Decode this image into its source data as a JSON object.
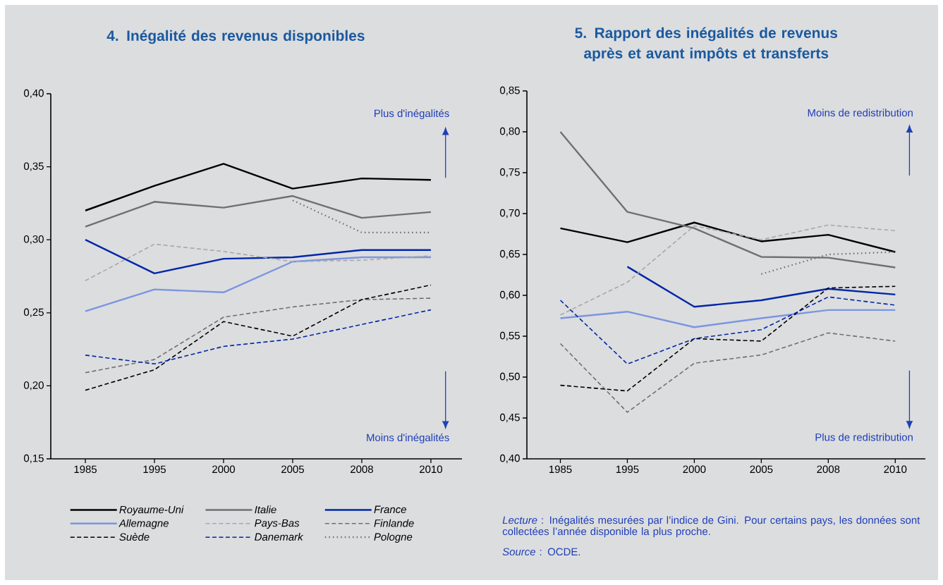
{
  "chart_data": [
    {
      "type": "line",
      "title": "4. Inégalité des revenus disponibles",
      "categories": [
        "1985",
        "1995",
        "2000",
        "2005",
        "2008",
        "2010"
      ],
      "ylim": [
        0.15,
        0.4
      ],
      "yticks": [
        {
          "value": 0.15,
          "label": "0,15"
        },
        {
          "value": 0.2,
          "label": "0,20"
        },
        {
          "value": 0.25,
          "label": "0,25"
        },
        {
          "value": 0.3,
          "label": "0,30"
        },
        {
          "value": 0.35,
          "label": "0,35"
        },
        {
          "value": 0.4,
          "label": "0,40"
        }
      ],
      "legend": "bottom",
      "annotations": [
        "Plus d'inégalités",
        "Moins d'inégalités"
      ],
      "series": [
        {
          "name": "Royaume-Uni",
          "color": "#000000",
          "line_style": "solid",
          "values": [
            0.32,
            0.337,
            0.352,
            0.335,
            0.342,
            0.341
          ]
        },
        {
          "name": "Italie",
          "color": "#707070",
          "line_style": "solid",
          "values": [
            0.309,
            0.326,
            0.322,
            0.33,
            0.315,
            0.319
          ]
        },
        {
          "name": "France",
          "color": "#0026a8",
          "line_style": "solid",
          "values": [
            0.3,
            0.277,
            0.287,
            0.288,
            0.293,
            0.293
          ]
        },
        {
          "name": "Allemagne",
          "color": "#7b95e0",
          "line_style": "solid",
          "values": [
            0.251,
            0.266,
            0.264,
            0.285,
            0.288,
            0.288
          ]
        },
        {
          "name": "Pays-Bas",
          "color": "#a8a8a8",
          "line_style": "dashed",
          "values": [
            0.272,
            0.297,
            0.292,
            0.285,
            0.286,
            0.289
          ]
        },
        {
          "name": "Finlande",
          "color": "#707070",
          "line_style": "dashed",
          "values": [
            0.209,
            0.218,
            0.247,
            0.254,
            0.259,
            0.26
          ]
        },
        {
          "name": "Suède",
          "color": "#000000",
          "line_style": "dashed",
          "values": [
            0.197,
            0.211,
            0.244,
            0.234,
            0.259,
            0.269
          ]
        },
        {
          "name": "Danemark",
          "color": "#0026a8",
          "line_style": "dashed",
          "values": [
            0.221,
            0.215,
            0.227,
            0.232,
            0.242,
            0.252
          ]
        },
        {
          "name": "Pologne",
          "color": "#707070",
          "line_style": "dotted",
          "values": [
            null,
            null,
            null,
            0.327,
            0.305,
            0.305
          ]
        }
      ]
    },
    {
      "type": "line",
      "title": "5. Rapport des inégalités de revenus après et avant impôts et transferts",
      "categories": [
        "1985",
        "1995",
        "2000",
        "2005",
        "2008",
        "2010"
      ],
      "ylim": [
        0.4,
        0.85
      ],
      "yticks": [
        {
          "value": 0.4,
          "label": "0,40"
        },
        {
          "value": 0.45,
          "label": "0,45"
        },
        {
          "value": 0.5,
          "label": "0,50"
        },
        {
          "value": 0.55,
          "label": "0,55"
        },
        {
          "value": 0.6,
          "label": "0,60"
        },
        {
          "value": 0.65,
          "label": "0,65"
        },
        {
          "value": 0.7,
          "label": "0,70"
        },
        {
          "value": 0.75,
          "label": "0,75"
        },
        {
          "value": 0.8,
          "label": "0,80"
        },
        {
          "value": 0.85,
          "label": "0,85"
        }
      ],
      "annotations": [
        "Moins de redistribution",
        "Plus de redistribution",
        "*Lecture* : Inégalités mesurées par l’indice de Gini. Pour certains pays, les données sont collectées l’année disponible la plus proche.",
        "*Source* : OCDE."
      ],
      "series": [
        {
          "color": "#000000",
          "line_style": "solid",
          "values": [
            0.682,
            0.665,
            0.689,
            0.666,
            0.674,
            0.653
          ]
        },
        {
          "color": "#707070",
          "line_style": "solid",
          "values": [
            0.8,
            0.702,
            0.682,
            0.647,
            0.646,
            0.634
          ]
        },
        {
          "color": "#0026a8",
          "line_style": "solid",
          "values": [
            null,
            0.635,
            0.586,
            0.594,
            0.608,
            0.601
          ]
        },
        {
          "color": "#7b95e0",
          "line_style": "solid",
          "values": [
            0.572,
            0.58,
            0.561,
            0.572,
            0.582,
            0.582
          ]
        },
        {
          "color": "#a8a8a8",
          "line_style": "dashed",
          "values": [
            0.576,
            0.616,
            0.685,
            0.668,
            0.686,
            0.679
          ]
        },
        {
          "color": "#707070",
          "line_style": "dashed",
          "values": [
            0.541,
            0.457,
            0.517,
            0.527,
            0.554,
            0.544
          ]
        },
        {
          "color": "#000000",
          "line_style": "dashed",
          "values": [
            0.49,
            0.483,
            0.547,
            0.544,
            0.609,
            0.611
          ]
        },
        {
          "color": "#0026a8",
          "line_style": "dashed",
          "values": [
            0.594,
            0.516,
            0.547,
            0.558,
            0.598,
            0.588
          ]
        },
        {
          "color": "#707070",
          "line_style": "dotted",
          "values": [
            null,
            null,
            null,
            0.626,
            0.65,
            0.653
          ]
        }
      ]
    }
  ]
}
